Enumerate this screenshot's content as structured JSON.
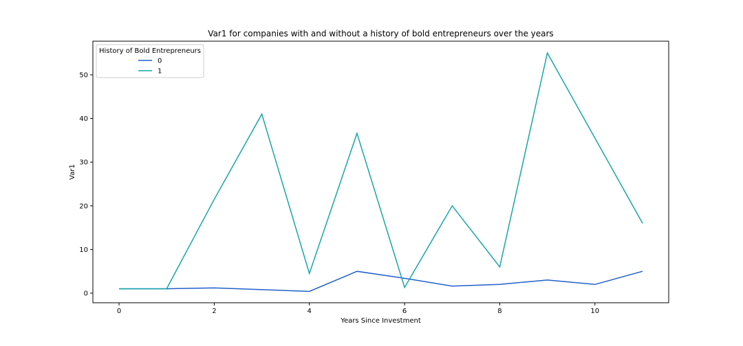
{
  "chart_data": {
    "type": "line",
    "title": "Var1 for companies with and without a history of bold entrepreneurs over the years",
    "xlabel": "Years Since Investment",
    "ylabel": "Var1",
    "x": [
      0,
      1,
      2,
      3,
      4,
      5,
      6,
      7,
      8,
      9,
      10,
      11
    ],
    "xlim": [
      -0.55,
      11.55
    ],
    "ylim": [
      -2.2,
      57.7
    ],
    "xticks": [
      0,
      2,
      4,
      6,
      8,
      10
    ],
    "yticks": [
      0,
      10,
      20,
      30,
      40,
      50
    ],
    "grid": false,
    "legend": {
      "title": "History of Bold Entrepreneurs",
      "placement": "top-left"
    },
    "series": [
      {
        "name": "0",
        "color": "#1f5fc8",
        "values": [
          1,
          1,
          1.2,
          0.8,
          0.4,
          5,
          3.4,
          1.6,
          2,
          3,
          2,
          5
        ]
      },
      {
        "name": "1",
        "color": "#17a5a8",
        "values": [
          1,
          1,
          21.5,
          41,
          4.5,
          36.6,
          1.3,
          20,
          6,
          55,
          35.5,
          16
        ]
      }
    ]
  }
}
